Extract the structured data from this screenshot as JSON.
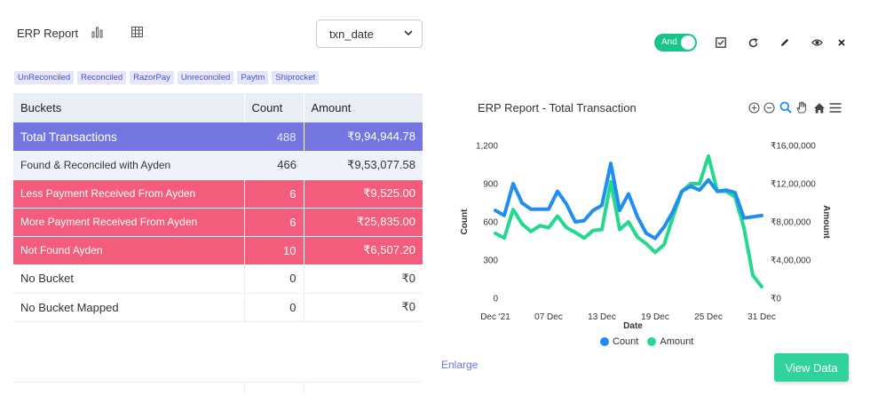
{
  "header": {
    "title": "ERP Report",
    "select_value": "txn_date"
  },
  "filters": [
    "UnReconciled",
    "Reconciled",
    "RazorPay",
    "Unreconciled",
    "Paytm",
    "Shiprocket"
  ],
  "table": {
    "columns": [
      "Buckets",
      "Count",
      "Amount"
    ],
    "rows": [
      {
        "bucket": "Total  Transactions",
        "count": "488",
        "amount": "₹9,94,944.78",
        "style": "total"
      },
      {
        "bucket": "Found & Reconciled with Ayden",
        "count": "466",
        "amount": "₹9,53,077.58",
        "style": "found"
      },
      {
        "bucket": "Less Payment Received From Ayden",
        "count": "6",
        "amount": "₹9,525.00",
        "style": "bad"
      },
      {
        "bucket": "More Payment Received From Ayden",
        "count": "6",
        "amount": "₹25,835.00",
        "style": "bad"
      },
      {
        "bucket": "Not Found Ayden",
        "count": "10",
        "amount": "₹6,507.20",
        "style": "bad"
      },
      {
        "bucket": "No Bucket",
        "count": "0",
        "amount": "₹0",
        "style": "plain"
      },
      {
        "bucket": "No Bucket Mapped",
        "count": "0",
        "amount": "₹0",
        "style": "plain"
      }
    ]
  },
  "toolbar": {
    "toggle_label": "And",
    "icons": [
      "check-square-icon",
      "refresh-icon",
      "pencil-icon",
      "eye-icon",
      "close-icon"
    ]
  },
  "chart_panel": {
    "enlarge_label": "Enlarge",
    "view_button_label": "View Data"
  },
  "colors": {
    "count": "#1f8ef0",
    "amount": "#24d98e",
    "total_row": "#7376e0",
    "bad_row": "#f35c7b",
    "accent": "#2fd39b"
  },
  "chart_data": {
    "type": "line",
    "title": "ERP Report - Total Transaction",
    "xlabel": "Date",
    "ylabel": "Count",
    "y2label": "Amount",
    "x": [
      "Dec '21",
      "02",
      "03",
      "04",
      "05",
      "06",
      "07 Dec",
      "08",
      "09",
      "10",
      "11",
      "12",
      "13 Dec",
      "14",
      "15",
      "16",
      "17",
      "18",
      "19 Dec",
      "20",
      "21",
      "22",
      "23",
      "24",
      "25 Dec",
      "26",
      "27",
      "28",
      "29",
      "30",
      "31 Dec"
    ],
    "x_tick_labels": [
      "Dec '21",
      "07 Dec",
      "13 Dec",
      "19 Dec",
      "25 Dec",
      "31 Dec"
    ],
    "ylim": [
      0,
      1200
    ],
    "y_ticks": [
      "0",
      "300",
      "600",
      "900",
      "1,200"
    ],
    "y2lim": [
      0,
      1600000
    ],
    "y2_ticks": [
      "₹0",
      "₹4,00,000",
      "₹8,00,000",
      "₹12,00,000",
      "₹16,00,000"
    ],
    "series": [
      {
        "name": "Count",
        "axis": "left",
        "values": [
          690,
          650,
          900,
          750,
          700,
          700,
          700,
          840,
          740,
          600,
          610,
          690,
          730,
          1060,
          690,
          820,
          640,
          510,
          470,
          560,
          680,
          840,
          880,
          850,
          930,
          840,
          850,
          830,
          630,
          640,
          650
        ]
      },
      {
        "name": "Amount",
        "axis": "right",
        "values": [
          680000,
          630000,
          930000,
          780000,
          700000,
          760000,
          740000,
          860000,
          740000,
          690000,
          630000,
          710000,
          720000,
          1220000,
          720000,
          800000,
          640000,
          570000,
          480000,
          560000,
          850000,
          1120000,
          1200000,
          1200000,
          1490000,
          1120000,
          1120000,
          1060000,
          740000,
          240000,
          120000
        ]
      }
    ],
    "legend_position": "bottom",
    "grid": false
  }
}
